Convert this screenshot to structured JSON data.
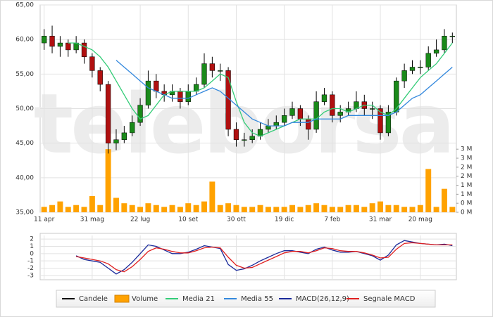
{
  "chart_data": [
    {
      "type": "candlestick",
      "watermark": "teleborsa",
      "categories": [
        "11 apr",
        null,
        null,
        null,
        null,
        null,
        "31 mag",
        null,
        null,
        null,
        null,
        null,
        "22 lug",
        null,
        null,
        null,
        null,
        null,
        "10 set",
        null,
        null,
        null,
        null,
        null,
        "30 ott",
        null,
        null,
        null,
        null,
        null,
        "19 dic",
        null,
        null,
        null,
        null,
        null,
        "7 feb",
        null,
        null,
        null,
        null,
        null,
        "31 mar",
        null,
        null,
        null,
        null,
        "20 mag",
        null,
        null,
        null,
        null
      ],
      "ylim": [
        35,
        65
      ],
      "yticks": [
        {
          "value": 35,
          "label": "35,00"
        },
        {
          "value": 40,
          "label": "40,00"
        },
        {
          "value": 45,
          "label": "45,00"
        },
        {
          "value": 50,
          "label": "50,00"
        },
        {
          "value": 55,
          "label": "55,00"
        },
        {
          "value": 60,
          "label": "60,00"
        },
        {
          "value": 65,
          "label": "65,00"
        }
      ],
      "y2lim": [
        0,
        11.5
      ],
      "y2ticks": [
        {
          "value": 0,
          "label": "0 M"
        },
        {
          "value": 0.5,
          "label": "0 M"
        },
        {
          "value": 1,
          "label": "1 M"
        },
        {
          "value": 1.5,
          "label": "1 M"
        },
        {
          "value": 2,
          "label": "2 M"
        },
        {
          "value": 2.5,
          "label": "2 M"
        },
        {
          "value": 3,
          "label": "3 M"
        },
        {
          "value": 3.5,
          "label": "3 M"
        }
      ],
      "grid": true,
      "series": [
        {
          "name": "Candele",
          "type": "candlestick",
          "color": "#000000",
          "up_color": "#1a8a1a",
          "down_color": "#b01010",
          "open": [
            59.5,
            60.5,
            59,
            59.5,
            58.5,
            59.5,
            57.5,
            55.5,
            53.5,
            45,
            45.5,
            46.5,
            48,
            50.5,
            54,
            52.5,
            52,
            52.5,
            51,
            52.5,
            53.5,
            56.5,
            55.5,
            55.5,
            47,
            45.5,
            45.5,
            46,
            47,
            47.5,
            48,
            49,
            50,
            48.5,
            47,
            51,
            52,
            49,
            49.5,
            50,
            51,
            50,
            50,
            46.5,
            49.5,
            54,
            55.5,
            56,
            56,
            58,
            58.5,
            60.5
          ],
          "high": [
            61.5,
            62,
            60.5,
            60,
            60.5,
            60,
            58,
            56,
            54,
            47,
            47.5,
            49,
            51.5,
            55.5,
            55,
            53.5,
            53.5,
            53,
            53.5,
            54.5,
            58,
            57.5,
            56.5,
            56,
            48,
            46.5,
            47,
            48,
            48.5,
            49,
            50,
            51,
            50.5,
            49,
            52.5,
            53,
            52.5,
            50.5,
            51,
            52.5,
            52,
            51,
            50.5,
            50.5,
            54.5,
            56.5,
            57,
            57,
            59,
            60,
            61.5,
            61
          ],
          "low": [
            58.5,
            58,
            57.5,
            57.5,
            58,
            56.5,
            54.5,
            52.5,
            43.5,
            44,
            45,
            46,
            47.5,
            50,
            51.5,
            51,
            51,
            50,
            50.5,
            52,
            53,
            54.5,
            54,
            46,
            44.5,
            44.5,
            45,
            45.5,
            46.5,
            47,
            47.5,
            48.5,
            47.5,
            45.5,
            46.5,
            50.5,
            48,
            48,
            49,
            49.5,
            49,
            48.5,
            45.5,
            46,
            49,
            53,
            55,
            55,
            55.5,
            57.5,
            58,
            59.5
          ],
          "close": [
            60.5,
            59,
            59.5,
            58.5,
            59.5,
            57.5,
            55.5,
            53.5,
            45,
            45.5,
            46.5,
            48,
            50.5,
            54,
            52.5,
            52,
            52.5,
            51,
            52.5,
            53.5,
            56.5,
            55.5,
            55.5,
            47,
            45.5,
            45.5,
            46,
            47,
            47.5,
            48,
            49,
            50,
            48.5,
            47,
            51,
            52,
            49,
            49.5,
            50,
            51,
            50,
            50,
            46.5,
            49.5,
            54,
            55.5,
            56,
            56,
            58,
            58.5,
            60.5,
            60.5
          ]
        },
        {
          "name": "Volume",
          "type": "bar",
          "axis": "y2",
          "color": "#ffa200",
          "values": [
            0.3,
            0.4,
            0.6,
            0.3,
            0.4,
            0.3,
            0.9,
            0.4,
            3.5,
            0.8,
            0.5,
            0.4,
            0.3,
            0.5,
            0.4,
            0.3,
            0.4,
            0.3,
            0.5,
            0.4,
            0.6,
            1.7,
            0.4,
            0.5,
            0.4,
            0.3,
            0.3,
            0.4,
            0.3,
            0.3,
            0.3,
            0.4,
            0.3,
            0.4,
            0.5,
            0.4,
            0.3,
            0.3,
            0.4,
            0.4,
            0.3,
            0.5,
            0.6,
            0.4,
            0.4,
            0.3,
            0.3,
            0.4,
            2.4,
            0.3,
            1.3,
            0.3
          ]
        },
        {
          "name": "Media 21",
          "type": "line",
          "color": "#33cc77",
          "values": [
            null,
            null,
            null,
            59.5,
            59.5,
            59,
            58.5,
            57.5,
            56,
            54,
            52,
            50,
            48.5,
            49,
            50.5,
            52,
            52.5,
            52.5,
            52.5,
            52.5,
            53,
            54,
            55,
            54.5,
            51,
            48,
            46.5,
            46,
            46.5,
            47,
            47.5,
            48,
            48.5,
            48.5,
            48.5,
            49.5,
            50,
            50,
            49.5,
            50,
            50.5,
            50.5,
            49.5,
            49,
            50,
            51.5,
            53,
            54.5,
            55.5,
            56.5,
            58,
            59.5
          ]
        },
        {
          "name": "Media 55",
          "type": "line",
          "color": "#3388dd",
          "values": [
            null,
            null,
            null,
            null,
            null,
            null,
            null,
            null,
            null,
            57,
            56,
            55,
            54,
            53,
            52.5,
            52,
            51.5,
            51.5,
            51.5,
            52,
            52.5,
            53,
            52.5,
            51.5,
            50.5,
            49.5,
            48.5,
            48,
            47.5,
            47.5,
            47.5,
            48,
            48,
            48,
            48.5,
            48.5,
            48.5,
            48.5,
            49,
            49,
            49,
            49,
            49,
            49,
            49.5,
            50.5,
            51.5,
            52,
            53,
            54,
            55,
            56
          ]
        }
      ]
    },
    {
      "type": "line",
      "ylim": [
        -3.5,
        2.5
      ],
      "yticks": [
        -3,
        -2,
        -1,
        0,
        1,
        2
      ],
      "grid": true,
      "series": [
        {
          "name": "MACD(26,12,9)",
          "color": "#1a2a9a",
          "values": [
            null,
            null,
            null,
            null,
            -0.3,
            -0.8,
            -1,
            -1.2,
            -2,
            -2.8,
            -2.2,
            -1.2,
            0,
            1.2,
            1,
            0.5,
            0,
            0,
            0.2,
            0.6,
            1.1,
            0.9,
            0.7,
            -1.5,
            -2.3,
            -2.1,
            -1.6,
            -1,
            -0.5,
            0,
            0.4,
            0.4,
            0.2,
            0,
            0.6,
            0.9,
            0.5,
            0.2,
            0.2,
            0.3,
            0,
            -0.3,
            -0.9,
            -0.2,
            1.2,
            1.8,
            1.6,
            1.4,
            1.3,
            1.2,
            1.3,
            1.1
          ]
        },
        {
          "name": "Segnale MACD",
          "color": "#e02020",
          "values": [
            null,
            null,
            null,
            null,
            -0.4,
            -0.6,
            -0.8,
            -1,
            -1.4,
            -2.2,
            -2.5,
            -1.8,
            -0.8,
            0.3,
            0.8,
            0.6,
            0.3,
            0.1,
            0.1,
            0.4,
            0.8,
            0.9,
            0.8,
            -0.5,
            -1.6,
            -2,
            -1.9,
            -1.4,
            -0.9,
            -0.4,
            0.1,
            0.3,
            0.3,
            0.1,
            0.4,
            0.8,
            0.7,
            0.4,
            0.3,
            0.3,
            0.1,
            -0.2,
            -0.6,
            -0.5,
            0.6,
            1.4,
            1.5,
            1.4,
            1.3,
            1.2,
            1.2,
            1.2
          ]
        }
      ]
    }
  ]
}
